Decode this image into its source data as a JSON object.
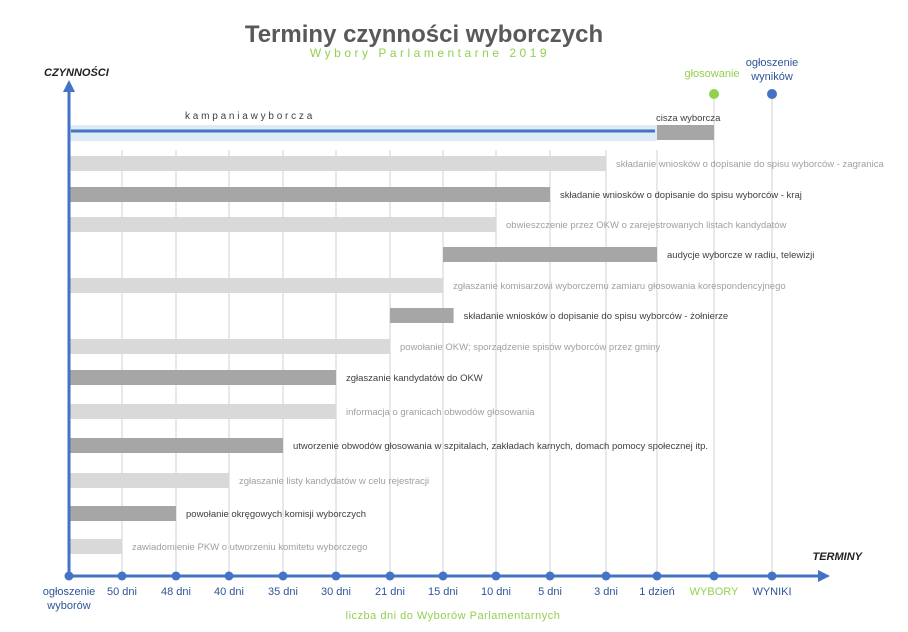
{
  "chart_data": {
    "type": "bar",
    "subtype": "gantt",
    "title": "Terminy czynności wyborczych",
    "subtitle": "Wybory Parlamentarne 2019",
    "ylabel": "CZYNNOŚCI",
    "xlabel": "TERMINY",
    "xcaption": "liczba dni do Wyborów Parlamentarnych",
    "ticks": [
      "ogłoszenie wyborów",
      "50 dni",
      "48 dni",
      "40 dni",
      "35 dni",
      "30 dni",
      "21 dni",
      "15 dni",
      "10 dni",
      "5 dni",
      "3 dni",
      "1 dzień",
      "WYBORY",
      "WYNIKI"
    ],
    "milestones": [
      {
        "label": "głosowanie",
        "tick": 12,
        "color": "#92d050"
      },
      {
        "label": "ogłoszenie wyników",
        "tick": 13,
        "color": "#4472c4"
      }
    ],
    "campaign": {
      "label": "k a m p a n i a     w y b o r c z a",
      "start": 0,
      "end": 11
    },
    "tasks": [
      {
        "label": "cisza wyborcza",
        "start": 11,
        "end": 12,
        "shade": "dark",
        "row": 0
      },
      {
        "label": "składanie wniosków o dopisanie do spisu wyborców - zagranica",
        "start": 0,
        "end": 10,
        "shade": "light",
        "row": 1
      },
      {
        "label": "składanie wniosków o dopisanie do spisu wyborców - kraj",
        "start": 0,
        "end": 9,
        "shade": "dark",
        "row": 2
      },
      {
        "label": "obwieszczenie przez OKW o zarejestrowanych listach kandydatów",
        "start": 0,
        "end": 8,
        "shade": "light",
        "row": 3
      },
      {
        "label": "audycje wyborcze w radiu, telewizji",
        "start": 7,
        "end": 11,
        "shade": "dark",
        "row": 4
      },
      {
        "label": "zgłaszanie komisarzowi wyborczemu zamiaru głosowania korespondencyjnego",
        "start": 0,
        "end": 7,
        "shade": "light",
        "row": 5
      },
      {
        "label": "składanie wniosków o dopisanie do spisu wyborców - żołnierze",
        "start": 6,
        "end": 7.2,
        "shade": "dark",
        "row": 6
      },
      {
        "label": "powołanie OKW; sporządzenie spisów wyborców przez gminy",
        "start": 0,
        "end": 6,
        "shade": "light",
        "row": 7
      },
      {
        "label": "zgłaszanie kandydatów do OKW",
        "start": 0,
        "end": 5,
        "shade": "dark",
        "row": 8
      },
      {
        "label": "informacja o granicach obwodów głosowania",
        "start": 0,
        "end": 5,
        "shade": "light",
        "row": 9
      },
      {
        "label": "utworzenie obwodów głosowania w szpitalach, zakładach karnych, domach pomocy społecznej itp.",
        "start": 0,
        "end": 4,
        "shade": "dark",
        "row": 10
      },
      {
        "label": "zgłaszanie listy kandydatów w celu rejestracji",
        "start": 0,
        "end": 3,
        "shade": "light",
        "row": 11
      },
      {
        "label": "powołanie okręgowych komisji wyborczych",
        "start": 0,
        "end": 2,
        "shade": "dark",
        "row": 12
      },
      {
        "label": "zawiadomienie PKW o utworzeniu komitetu wyborczego",
        "start": 0,
        "end": 1,
        "shade": "light",
        "row": 13
      }
    ],
    "colors": {
      "axis": "#4472c4",
      "dark": "#a6a6a6",
      "light": "#d9d9d9",
      "campaign_band": "#ddebf7",
      "green": "#92d050",
      "title": "#595959"
    }
  }
}
